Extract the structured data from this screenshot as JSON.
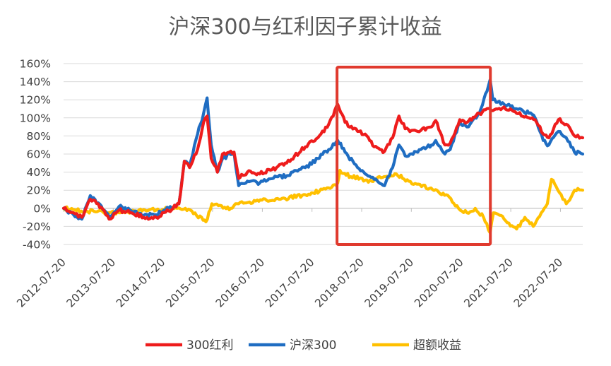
{
  "chart_data": {
    "type": "line",
    "title": "沪深300与红利因子累计收益",
    "xlabel": "",
    "ylabel": "",
    "ylim": [
      -0.4,
      1.6
    ],
    "y_ticks": [
      -0.4,
      -0.2,
      0.0,
      0.2,
      0.4,
      0.6,
      0.8,
      1.0,
      1.2,
      1.4,
      1.6
    ],
    "y_tick_labels": [
      "-40%",
      "-20%",
      "0%",
      "20%",
      "40%",
      "60%",
      "80%",
      "100%",
      "120%",
      "140%",
      "160%"
    ],
    "x_tick_labels": [
      "2012-07-20",
      "2013-07-20",
      "2014-07-20",
      "2015-07-20",
      "2016-07-20",
      "2017-07-20",
      "2018-07-20",
      "2019-07-20",
      "2020-07-20",
      "2021-07-20",
      "2022-07-20"
    ],
    "x_range": [
      "2012-07-20",
      "2022-12-31"
    ],
    "grid": "horizontal",
    "legend_position": "bottom",
    "highlight_box": {
      "x_start": "2018-01-20",
      "x_end": "2021-02-20",
      "color": "#E03A2E"
    },
    "series": [
      {
        "name": "300红利",
        "color": "#EE1C1C",
        "points": [
          [
            "2012-07-20",
            0.0
          ],
          [
            "2012-10-01",
            -0.05
          ],
          [
            "2012-12-01",
            -0.1
          ],
          [
            "2013-02-01",
            0.1
          ],
          [
            "2013-04-01",
            0.05
          ],
          [
            "2013-06-20",
            -0.12
          ],
          [
            "2013-09-01",
            -0.02
          ],
          [
            "2013-12-01",
            -0.05
          ],
          [
            "2014-03-01",
            -0.1
          ],
          [
            "2014-06-01",
            -0.1
          ],
          [
            "2014-09-01",
            -0.03
          ],
          [
            "2014-11-15",
            0.05
          ],
          [
            "2014-12-25",
            0.52
          ],
          [
            "2015-02-01",
            0.45
          ],
          [
            "2015-04-01",
            0.65
          ],
          [
            "2015-05-15",
            0.95
          ],
          [
            "2015-06-10",
            1.02
          ],
          [
            "2015-07-10",
            0.55
          ],
          [
            "2015-08-25",
            0.4
          ],
          [
            "2015-10-01",
            0.6
          ],
          [
            "2015-12-25",
            0.62
          ],
          [
            "2016-01-28",
            0.33
          ],
          [
            "2016-04-01",
            0.4
          ],
          [
            "2016-07-01",
            0.38
          ],
          [
            "2016-11-01",
            0.45
          ],
          [
            "2017-01-15",
            0.5
          ],
          [
            "2017-06-01",
            0.68
          ],
          [
            "2017-09-01",
            0.78
          ],
          [
            "2017-11-20",
            0.93
          ],
          [
            "2018-01-25",
            1.15
          ],
          [
            "2018-03-20",
            0.95
          ],
          [
            "2018-06-20",
            0.85
          ],
          [
            "2018-08-15",
            0.82
          ],
          [
            "2018-10-20",
            0.68
          ],
          [
            "2019-01-04",
            0.63
          ],
          [
            "2019-03-05",
            0.78
          ],
          [
            "2019-04-20",
            1.02
          ],
          [
            "2019-06-05",
            0.88
          ],
          [
            "2019-09-05",
            0.85
          ],
          [
            "2019-12-15",
            0.9
          ],
          [
            "2020-01-15",
            0.97
          ],
          [
            "2020-03-23",
            0.7
          ],
          [
            "2020-05-01",
            0.72
          ],
          [
            "2020-07-10",
            0.98
          ],
          [
            "2020-09-01",
            0.95
          ],
          [
            "2020-12-01",
            1.05
          ],
          [
            "2021-02-18",
            1.1
          ],
          [
            "2021-03-10",
            1.08
          ],
          [
            "2021-06-01",
            1.12
          ],
          [
            "2021-09-01",
            1.05
          ],
          [
            "2021-12-01",
            1.0
          ],
          [
            "2022-01-15",
            0.98
          ],
          [
            "2022-03-15",
            0.82
          ],
          [
            "2022-04-26",
            0.78
          ],
          [
            "2022-07-05",
            0.98
          ],
          [
            "2022-09-01",
            0.93
          ],
          [
            "2022-10-31",
            0.8
          ],
          [
            "2022-12-31",
            0.78
          ]
        ]
      },
      {
        "name": "沪深300",
        "color": "#1F6DC2",
        "points": [
          [
            "2012-07-20",
            0.0
          ],
          [
            "2012-10-01",
            -0.07
          ],
          [
            "2012-12-01",
            -0.12
          ],
          [
            "2013-02-01",
            0.14
          ],
          [
            "2013-04-01",
            0.06
          ],
          [
            "2013-06-20",
            -0.09
          ],
          [
            "2013-09-01",
            0.02
          ],
          [
            "2013-12-01",
            -0.03
          ],
          [
            "2014-03-01",
            -0.08
          ],
          [
            "2014-06-01",
            -0.07
          ],
          [
            "2014-09-01",
            0.0
          ],
          [
            "2014-11-15",
            0.05
          ],
          [
            "2014-12-25",
            0.52
          ],
          [
            "2015-02-01",
            0.48
          ],
          [
            "2015-04-01",
            0.82
          ],
          [
            "2015-05-15",
            1.05
          ],
          [
            "2015-06-10",
            1.22
          ],
          [
            "2015-07-10",
            0.7
          ],
          [
            "2015-08-25",
            0.4
          ],
          [
            "2015-10-01",
            0.55
          ],
          [
            "2015-12-25",
            0.62
          ],
          [
            "2016-01-28",
            0.25
          ],
          [
            "2016-04-01",
            0.3
          ],
          [
            "2016-07-01",
            0.28
          ],
          [
            "2016-11-01",
            0.35
          ],
          [
            "2017-01-15",
            0.36
          ],
          [
            "2017-06-01",
            0.45
          ],
          [
            "2017-09-01",
            0.55
          ],
          [
            "2017-11-20",
            0.65
          ],
          [
            "2018-01-25",
            0.75
          ],
          [
            "2018-03-20",
            0.62
          ],
          [
            "2018-06-20",
            0.45
          ],
          [
            "2018-08-15",
            0.38
          ],
          [
            "2018-10-20",
            0.32
          ],
          [
            "2019-01-04",
            0.25
          ],
          [
            "2019-03-05",
            0.45
          ],
          [
            "2019-04-20",
            0.7
          ],
          [
            "2019-06-05",
            0.58
          ],
          [
            "2019-09-05",
            0.62
          ],
          [
            "2019-12-15",
            0.7
          ],
          [
            "2020-01-15",
            0.75
          ],
          [
            "2020-03-23",
            0.6
          ],
          [
            "2020-05-01",
            0.65
          ],
          [
            "2020-07-10",
            0.95
          ],
          [
            "2020-09-01",
            0.9
          ],
          [
            "2020-12-01",
            1.05
          ],
          [
            "2021-02-18",
            1.42
          ],
          [
            "2021-03-10",
            1.2
          ],
          [
            "2021-06-01",
            1.15
          ],
          [
            "2021-09-01",
            1.1
          ],
          [
            "2021-12-01",
            1.05
          ],
          [
            "2022-01-15",
            1.0
          ],
          [
            "2022-03-15",
            0.75
          ],
          [
            "2022-04-26",
            0.7
          ],
          [
            "2022-07-05",
            0.85
          ],
          [
            "2022-09-01",
            0.78
          ],
          [
            "2022-10-31",
            0.62
          ],
          [
            "2022-12-31",
            0.6
          ]
        ]
      },
      {
        "name": "超额收益",
        "color": "#FFC000",
        "points": [
          [
            "2012-07-20",
            0.0
          ],
          [
            "2013-01-01",
            -0.03
          ],
          [
            "2013-06-01",
            -0.05
          ],
          [
            "2014-01-01",
            -0.03
          ],
          [
            "2014-06-01",
            -0.02
          ],
          [
            "2014-11-01",
            0.0
          ],
          [
            "2015-01-01",
            0.0
          ],
          [
            "2015-03-01",
            -0.06
          ],
          [
            "2015-05-01",
            -0.1
          ],
          [
            "2015-06-01",
            -0.15
          ],
          [
            "2015-07-15",
            0.05
          ],
          [
            "2015-09-01",
            0.03
          ],
          [
            "2015-12-01",
            0.0
          ],
          [
            "2016-01-28",
            0.05
          ],
          [
            "2016-06-01",
            0.08
          ],
          [
            "2016-12-01",
            0.1
          ],
          [
            "2017-06-01",
            0.15
          ],
          [
            "2017-12-01",
            0.22
          ],
          [
            "2018-01-25",
            0.28
          ],
          [
            "2018-02-10",
            0.42
          ],
          [
            "2018-05-01",
            0.35
          ],
          [
            "2018-10-01",
            0.3
          ],
          [
            "2019-01-01",
            0.35
          ],
          [
            "2019-04-01",
            0.38
          ],
          [
            "2019-07-01",
            0.3
          ],
          [
            "2019-12-01",
            0.22
          ],
          [
            "2020-04-01",
            0.15
          ],
          [
            "2020-07-01",
            0.0
          ],
          [
            "2020-09-01",
            -0.05
          ],
          [
            "2020-11-01",
            0.0
          ],
          [
            "2021-01-01",
            -0.1
          ],
          [
            "2021-02-18",
            -0.27
          ],
          [
            "2021-03-15",
            -0.05
          ],
          [
            "2021-06-01",
            -0.12
          ],
          [
            "2021-09-01",
            -0.23
          ],
          [
            "2021-11-01",
            -0.1
          ],
          [
            "2022-01-01",
            -0.2
          ],
          [
            "2022-03-01",
            -0.05
          ],
          [
            "2022-04-15",
            0.05
          ],
          [
            "2022-05-15",
            0.32
          ],
          [
            "2022-07-01",
            0.2
          ],
          [
            "2022-09-01",
            0.05
          ],
          [
            "2022-11-01",
            0.2
          ],
          [
            "2022-12-31",
            0.2
          ]
        ]
      }
    ]
  }
}
